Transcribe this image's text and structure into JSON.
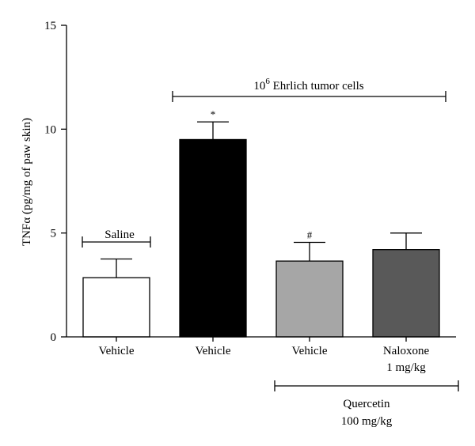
{
  "chart_data": {
    "type": "bar",
    "title": "",
    "xlabel": "",
    "ylabel": "TNFα (pg/mg of paw skin)",
    "ylim": [
      0,
      15
    ],
    "yticks": [
      0,
      5,
      10,
      15
    ],
    "grid": false,
    "categories": [
      "Vehicle",
      "Vehicle",
      "Vehicle",
      "Naloxone 1 mg/kg"
    ],
    "category_lines": [
      [
        "Vehicle"
      ],
      [
        "Vehicle"
      ],
      [
        "Vehicle"
      ],
      [
        "Naloxone",
        "1 mg/kg"
      ]
    ],
    "values": [
      2.85,
      9.5,
      3.65,
      4.2
    ],
    "errors": [
      0.9,
      0.85,
      0.9,
      0.8
    ],
    "bar_colors": [
      "#ffffff",
      "#000000",
      "#a6a6a6",
      "#595959"
    ],
    "significance": [
      "",
      "*",
      "#",
      ""
    ],
    "annotations": {
      "saline": "Saline",
      "ehrlich_prefix": "10",
      "ehrlich_superscript": "6",
      "ehrlich_suffix": " Ehrlich tumor cells",
      "quercetin_line1": "Quercetin",
      "quercetin_line2": "100 mg/kg"
    }
  }
}
